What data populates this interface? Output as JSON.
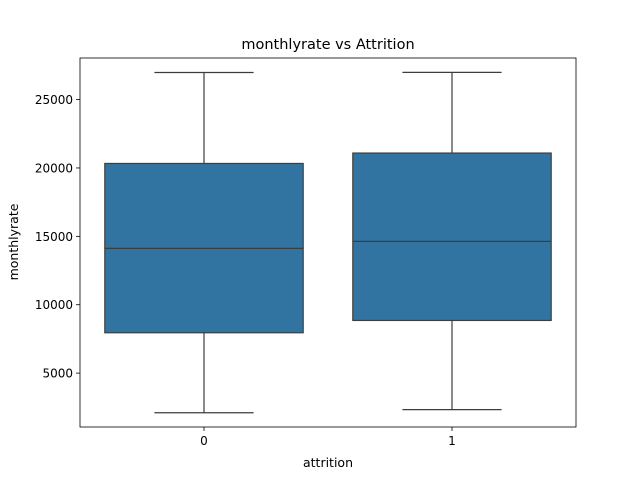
{
  "chart_data": {
    "type": "box",
    "title": "monthlyrate vs Attrition",
    "xlabel": "attrition",
    "ylabel": "monthlyrate",
    "categories": [
      "0",
      "1"
    ],
    "boxes": [
      {
        "category": "0",
        "whisker_low": 2100,
        "q1": 7950,
        "median": 14120,
        "q3": 20330,
        "whisker_high": 26980
      },
      {
        "category": "1",
        "whisker_low": 2330,
        "q1": 8850,
        "median": 14630,
        "q3": 21090,
        "whisker_high": 26990
      }
    ],
    "ylim": [
      1060,
      28040
    ],
    "yticks": [
      5000,
      10000,
      15000,
      20000,
      25000
    ],
    "grid": false,
    "box_color": "#3274a1",
    "line_color": "#3d3d3d"
  }
}
